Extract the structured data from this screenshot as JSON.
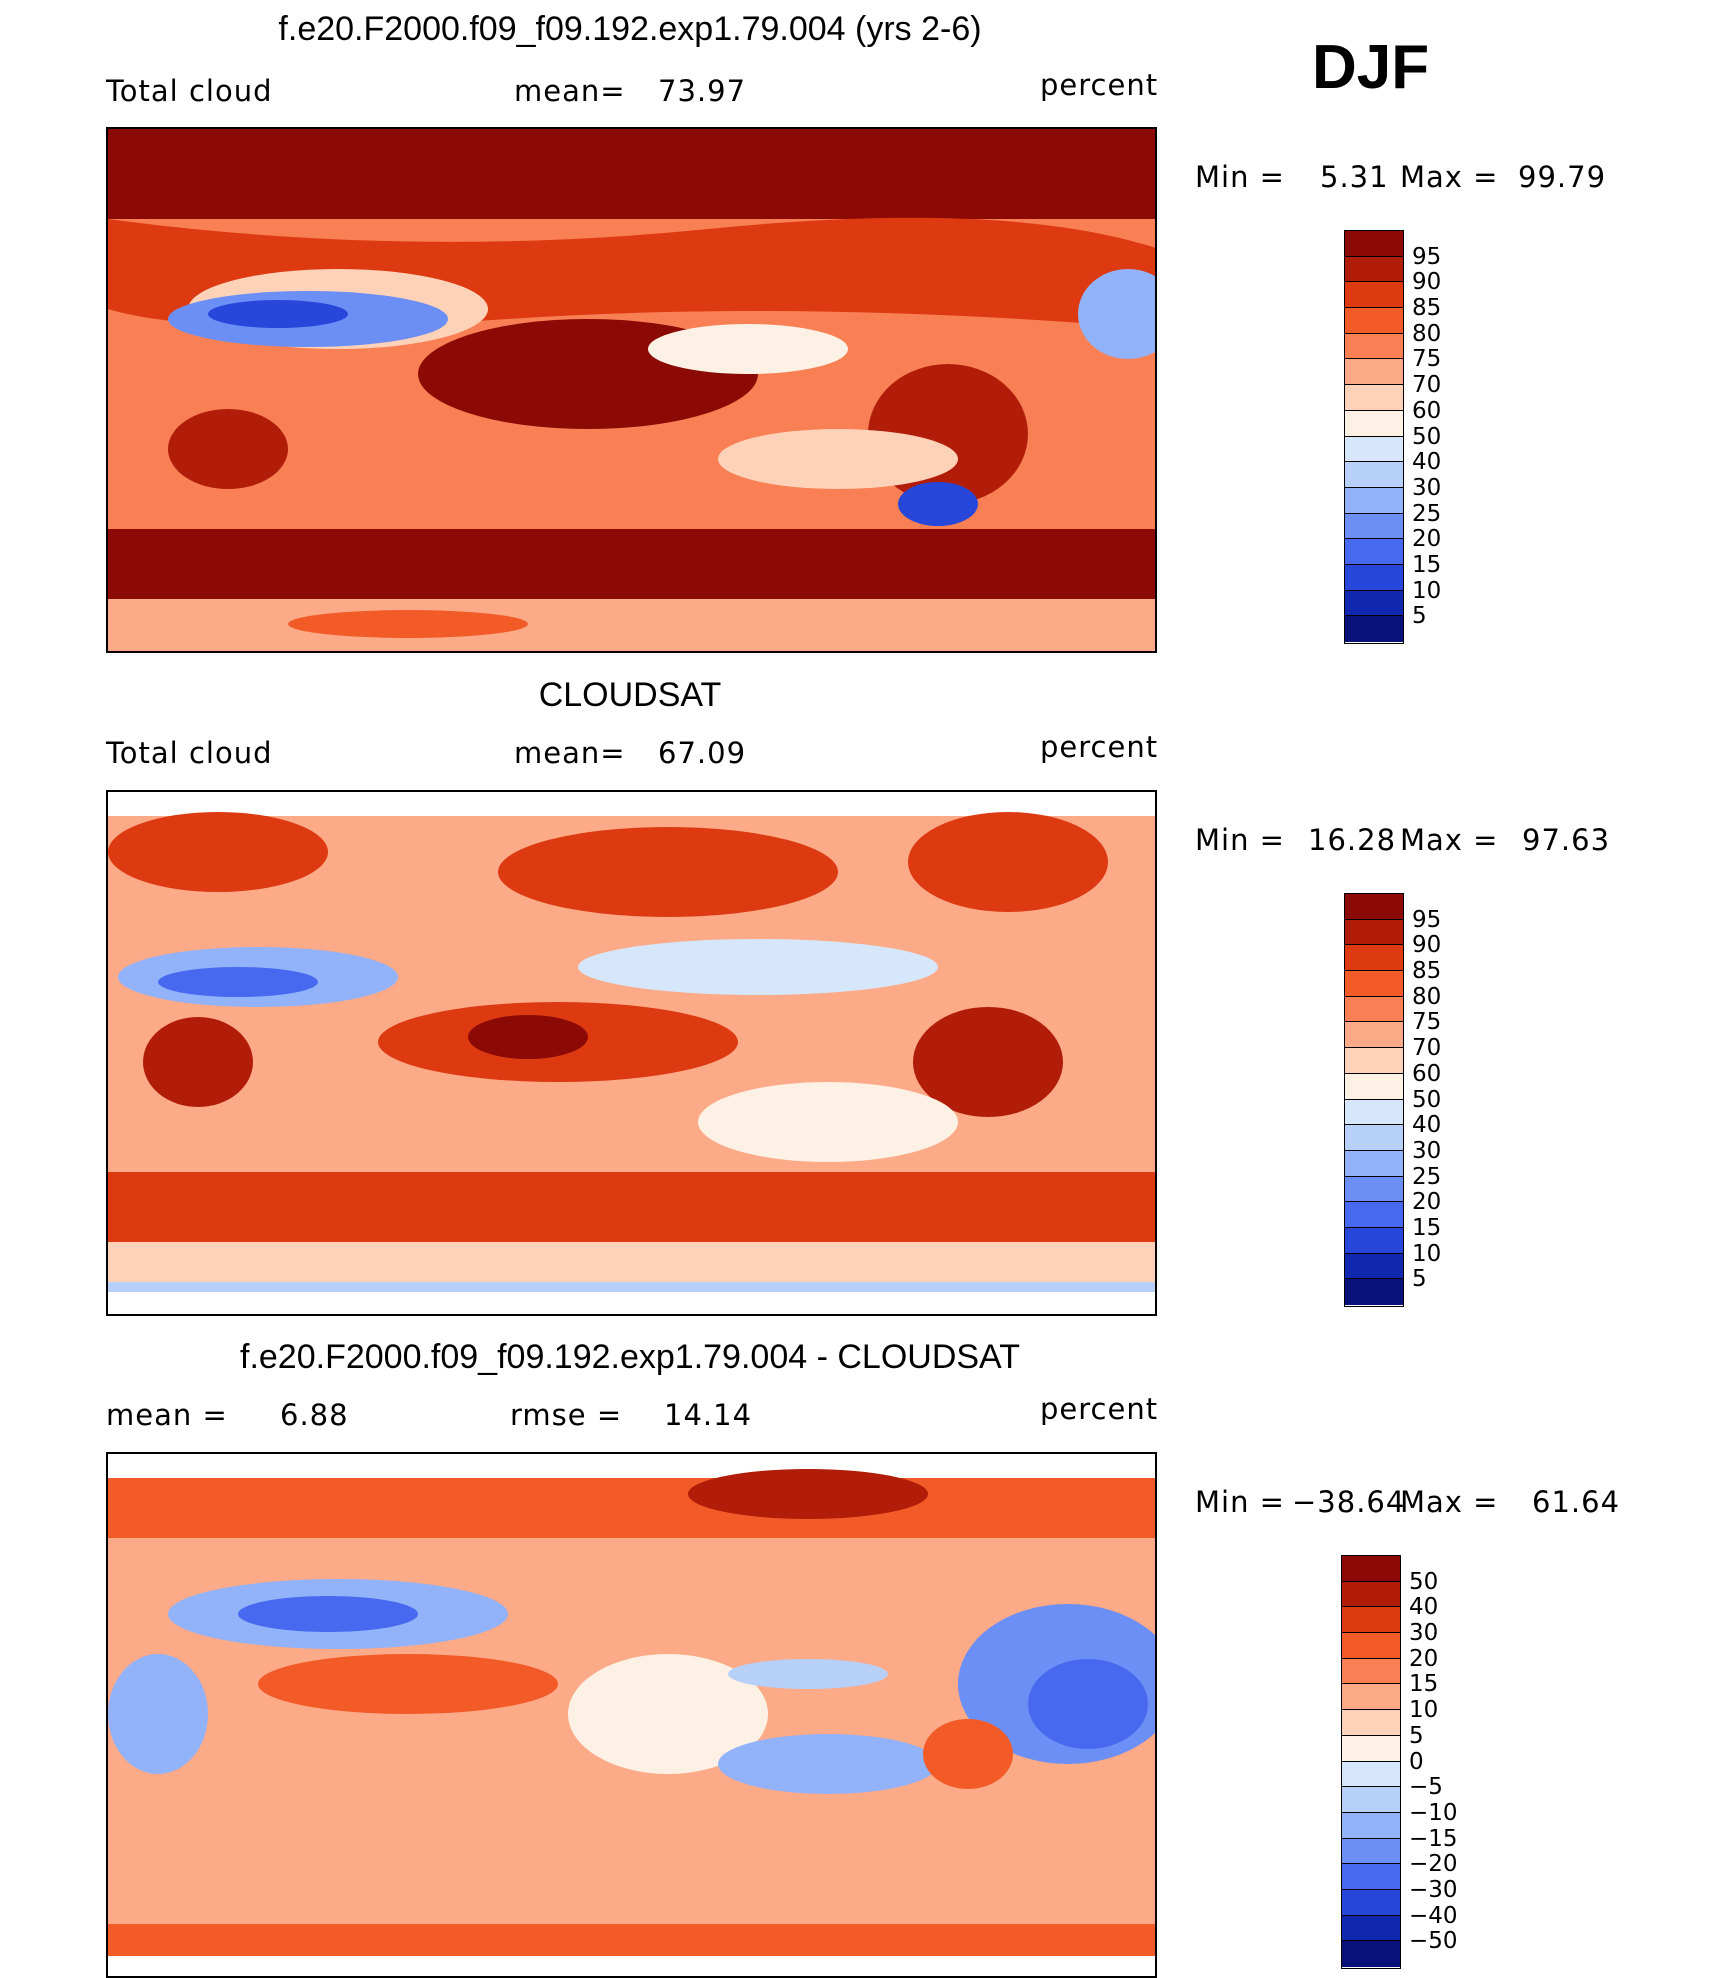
{
  "season": "DJF",
  "panels": [
    {
      "title": "f.e20.F2000.f09_f09.192.exp1.79.004 (yrs 2-6)",
      "left_label": "Total cloud",
      "mid_label": "mean=",
      "mid_value": "73.97",
      "right_label": "percent",
      "min_label": "Min  =",
      "min_value": "5.31",
      "max_label": "Max  =",
      "max_value": "99.79"
    },
    {
      "title": "CLOUDSAT",
      "left_label": "Total cloud",
      "mid_label": "mean=",
      "mid_value": "67.09",
      "right_label": "percent",
      "min_label": "Min  =",
      "min_value": "16.28",
      "max_label": "Max  =",
      "max_value": "97.63"
    },
    {
      "title": "f.e20.F2000.f09_f09.192.exp1.79.004 - CLOUDSAT",
      "left_label": "mean  =",
      "left_value": "6.88",
      "mid_label": "rmse  =",
      "mid_value": "14.14",
      "right_label": "percent",
      "min_label": "Min  =",
      "min_value": "−38.64",
      "max_label": "Max  =",
      "max_value": "61.64"
    }
  ],
  "colorbar_abs": {
    "ticks": [
      "95",
      "90",
      "85",
      "80",
      "75",
      "70",
      "60",
      "50",
      "40",
      "30",
      "25",
      "20",
      "15",
      "10",
      "5"
    ],
    "colors": [
      "#8b0a05",
      "#b21d09",
      "#dd3a12",
      "#f25b28",
      "#f98055",
      "#fcaa88",
      "#fdd2b9",
      "#fdf0e4",
      "#d6e7fb",
      "#b7d0fa",
      "#92b2f9",
      "#6c8ff5",
      "#4669ef",
      "#2647d9",
      "#1027b0",
      "#09127a"
    ]
  },
  "colorbar_diff": {
    "ticks": [
      "50",
      "40",
      "30",
      "20",
      "15",
      "10",
      "5",
      "0",
      "−5",
      "−10",
      "−15",
      "−20",
      "−30",
      "−40",
      "−50"
    ],
    "colors": [
      "#8b0a05",
      "#b21d09",
      "#dd3a12",
      "#f25b28",
      "#f98055",
      "#fcaa88",
      "#fdd2b9",
      "#fdf0e4",
      "#d6e7fb",
      "#b7d0fa",
      "#92b2f9",
      "#6c8ff5",
      "#4669ef",
      "#2647d9",
      "#1027b0",
      "#09127a"
    ]
  },
  "chart_data": [
    {
      "type": "heatmap",
      "title": "f.e20.F2000.f09_f09.192.exp1.79.004 (yrs 2-6)",
      "variable": "Total cloud",
      "units": "percent",
      "mean": 73.97,
      "min": 5.31,
      "max": 99.79,
      "contour_levels": [
        5,
        10,
        15,
        20,
        25,
        30,
        40,
        50,
        60,
        70,
        75,
        80,
        85,
        90,
        95
      ],
      "xlim": [
        0,
        360
      ],
      "ylim": [
        -90,
        90
      ]
    },
    {
      "type": "heatmap",
      "title": "CLOUDSAT",
      "variable": "Total cloud",
      "units": "percent",
      "mean": 67.09,
      "min": 16.28,
      "max": 97.63,
      "contour_levels": [
        5,
        10,
        15,
        20,
        25,
        30,
        40,
        50,
        60,
        70,
        75,
        80,
        85,
        90,
        95
      ],
      "xlim": [
        0,
        360
      ],
      "ylim": [
        -90,
        90
      ]
    },
    {
      "type": "heatmap",
      "title": "f.e20.F2000.f09_f09.192.exp1.79.004 - CLOUDSAT",
      "units": "percent",
      "mean": 6.88,
      "rmse": 14.14,
      "min": -38.64,
      "max": 61.64,
      "contour_levels": [
        -50,
        -40,
        -30,
        -20,
        -15,
        -10,
        -5,
        0,
        5,
        10,
        15,
        20,
        30,
        40,
        50
      ],
      "xlim": [
        0,
        360
      ],
      "ylim": [
        -90,
        90
      ]
    }
  ]
}
